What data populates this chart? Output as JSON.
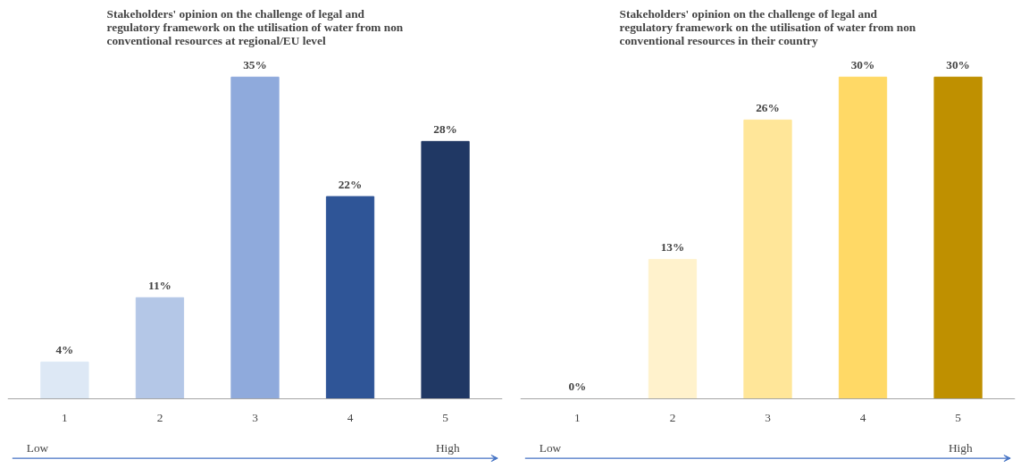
{
  "chart_data": [
    {
      "type": "bar",
      "title": "Stakeholders' opinion on the challenge of legal and regulatory framework on the utilisation of water from non conventional resources at regional/EU level",
      "categories": [
        "1",
        "2",
        "3",
        "4",
        "5"
      ],
      "values": [
        4,
        11,
        35,
        22,
        28
      ],
      "value_labels": [
        "4%",
        "11%",
        "35%",
        "22%",
        "28%"
      ],
      "colors": [
        "#dde8f5",
        "#b4c7e7",
        "#8faadc",
        "#2f5597",
        "#203864"
      ],
      "annotations": [
        "Low",
        "High"
      ]
    },
    {
      "type": "bar",
      "title": "Stakeholders' opinion on the challenge of legal and regulatory framework on the utilisation of water from non conventional resources in their country",
      "categories": [
        "1",
        "2",
        "3",
        "4",
        "5"
      ],
      "values": [
        0,
        13,
        26,
        30,
        30
      ],
      "value_labels": [
        "0%",
        "13%",
        "26%",
        "30%",
        "30%"
      ],
      "colors": [
        "#dde8f5",
        "#fff2cc",
        "#ffe699",
        "#ffd966",
        "#bf9000"
      ],
      "annotations": [
        "Low",
        "High"
      ]
    }
  ]
}
